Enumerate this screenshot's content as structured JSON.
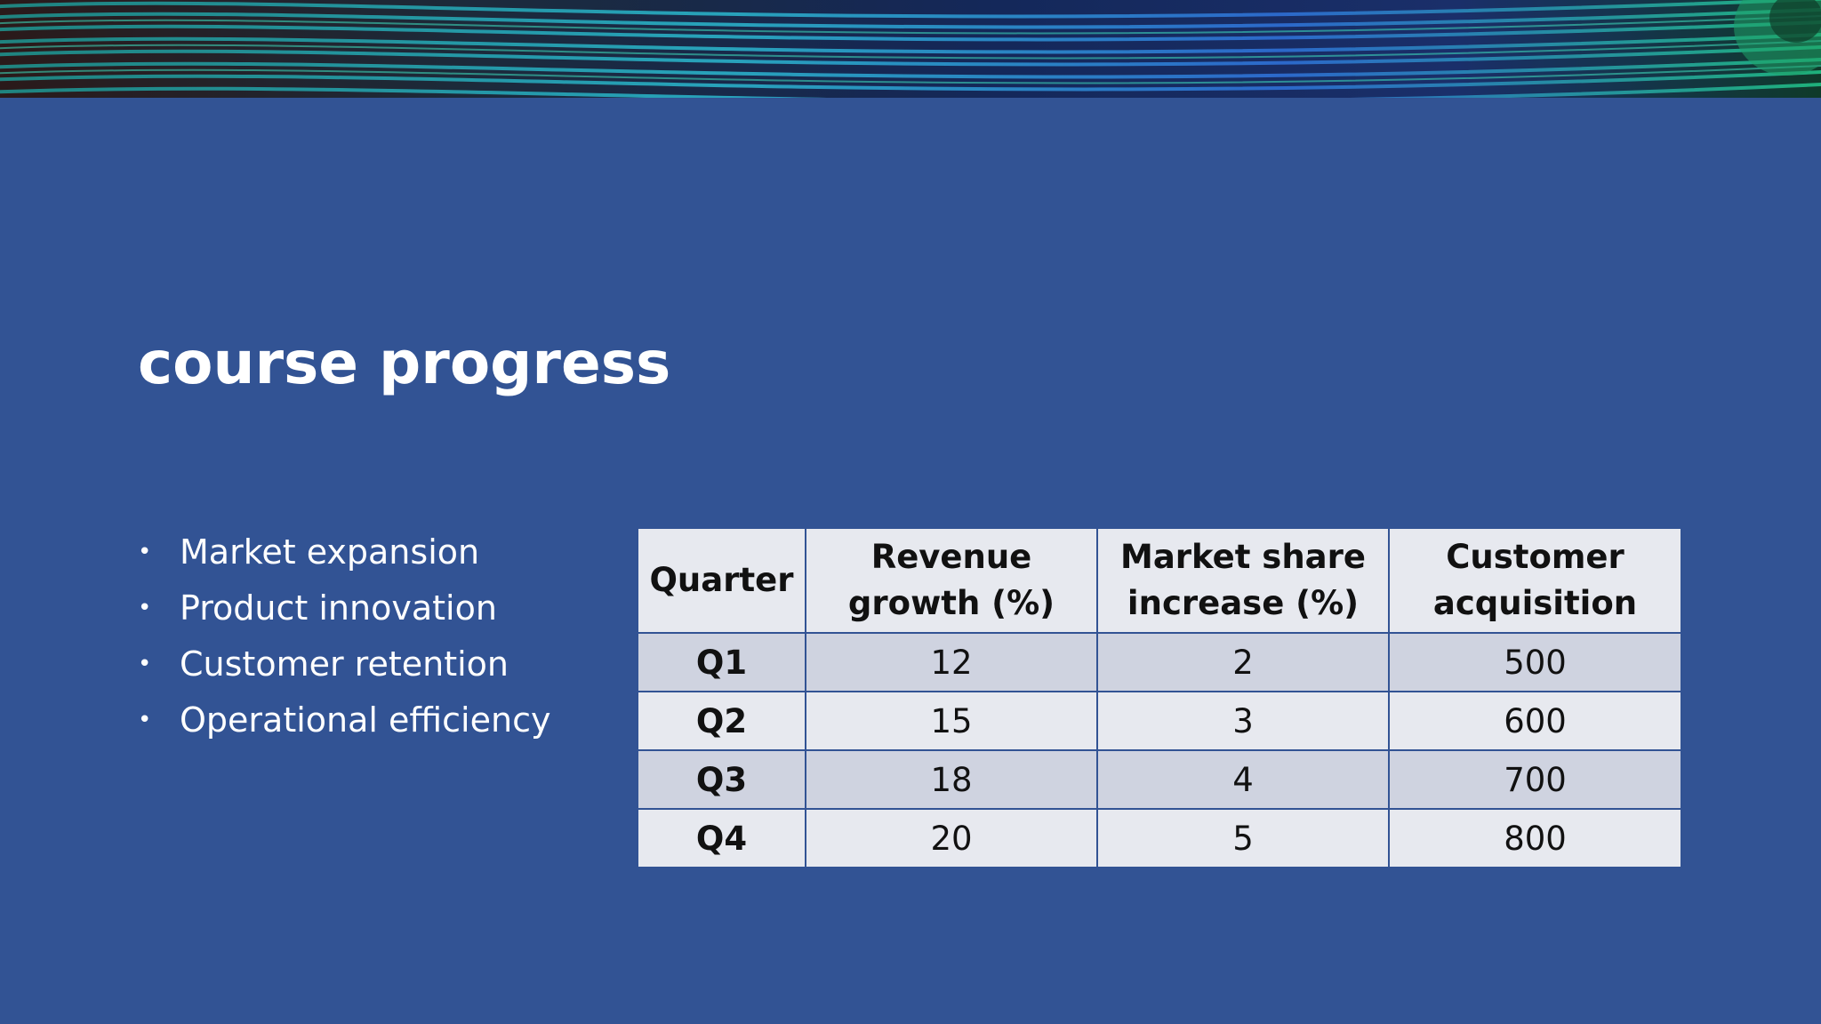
{
  "slide": {
    "title": "course progress",
    "bullets": [
      "Market expansion",
      "Product innovation",
      "Customer retention",
      "Operational efficiency"
    ],
    "bullet_glyph": "•",
    "colors": {
      "background": "#325394",
      "text": "#ffffff",
      "table_header_bg": "#e7e9ef",
      "table_row_odd_bg": "#cfd3e0",
      "table_row_even_bg": "#e7e9ef"
    },
    "banner_image": "peacock-feather"
  },
  "table": {
    "headers": [
      [
        "Quarter"
      ],
      [
        "Revenue",
        "growth (%)"
      ],
      [
        "Market share",
        "increase (%)"
      ],
      [
        "Customer",
        "acquisition"
      ]
    ],
    "rows": [
      [
        "Q1",
        "12",
        "2",
        "500"
      ],
      [
        "Q2",
        "15",
        "3",
        "600"
      ],
      [
        "Q3",
        "18",
        "4",
        "700"
      ],
      [
        "Q4",
        "20",
        "5",
        "800"
      ]
    ]
  }
}
